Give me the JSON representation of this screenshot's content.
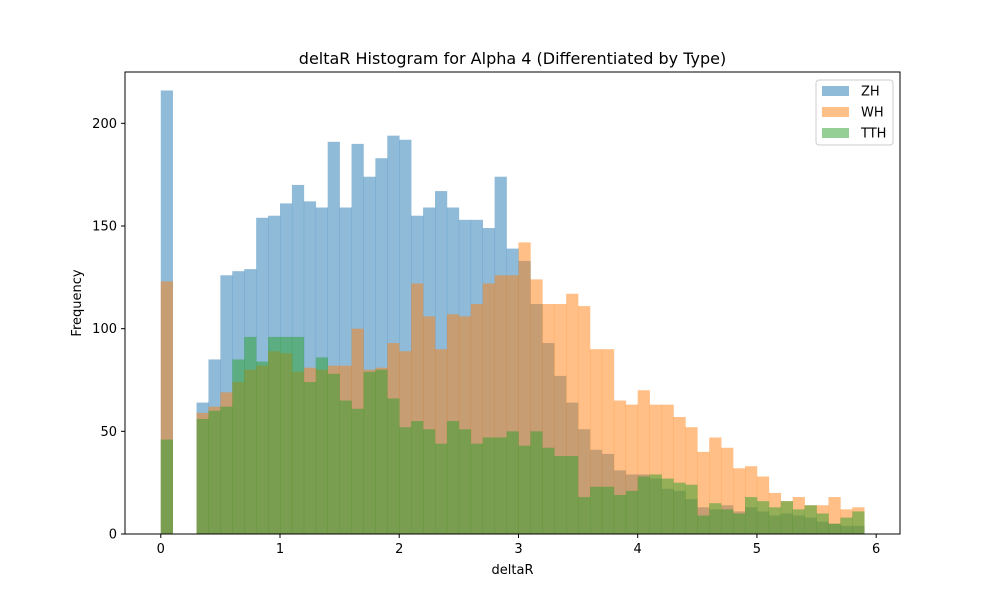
{
  "chart_data": {
    "type": "bar",
    "title": "deltaR Histogram for Alpha 4 (Differentiated by Type)",
    "xlabel": "deltaR",
    "ylabel": "Frequency",
    "xlim": [
      -0.3,
      6.2
    ],
    "ylim": [
      0,
      225
    ],
    "xticks": [
      0,
      1,
      2,
      3,
      4,
      5,
      6
    ],
    "yticks": [
      0,
      50,
      100,
      150,
      200
    ],
    "grid": false,
    "legend": "top-right",
    "bin_start": 0,
    "bin_width": 0.1,
    "opacity": 0.5,
    "series": [
      {
        "name": "ZH",
        "color": "#1f77b4",
        "values": [
          216,
          0,
          0,
          64,
          85,
          126,
          128,
          129,
          154,
          155,
          161,
          170,
          162,
          159,
          191,
          159,
          190,
          174,
          183,
          194,
          192,
          155,
          159,
          167,
          159,
          153,
          153,
          149,
          174,
          139,
          133,
          112,
          93,
          77,
          64,
          51,
          41,
          39,
          31,
          29,
          29,
          27,
          22,
          21,
          17,
          13,
          12,
          14,
          11,
          13,
          11,
          9,
          10,
          9,
          8,
          6,
          5,
          4,
          4
        ]
      },
      {
        "name": "WH",
        "color": "#ff7f0e",
        "values": [
          123,
          0,
          0,
          59,
          62,
          69,
          74,
          80,
          82,
          89,
          88,
          79,
          81,
          80,
          82,
          82,
          100,
          80,
          81,
          93,
          89,
          122,
          106,
          90,
          107,
          106,
          112,
          122,
          126,
          126,
          142,
          124,
          112,
          112,
          117,
          111,
          90,
          90,
          65,
          63,
          70,
          63,
          63,
          57,
          52,
          40,
          47,
          42,
          32,
          33,
          28,
          20,
          16,
          18,
          14,
          14,
          18,
          12,
          13
        ]
      },
      {
        "name": "TTH",
        "color": "#2ca02c",
        "values": [
          46,
          0,
          0,
          56,
          60,
          62,
          85,
          96,
          84,
          96,
          96,
          96,
          74,
          86,
          78,
          65,
          61,
          79,
          80,
          66,
          52,
          55,
          51,
          44,
          55,
          51,
          44,
          47,
          47,
          50,
          43,
          50,
          42,
          38,
          38,
          18,
          23,
          23,
          19,
          21,
          28,
          29,
          27,
          25,
          24,
          9,
          15,
          12,
          10,
          18,
          16,
          13,
          16,
          12,
          14,
          10,
          5,
          8,
          11
        ]
      }
    ]
  }
}
